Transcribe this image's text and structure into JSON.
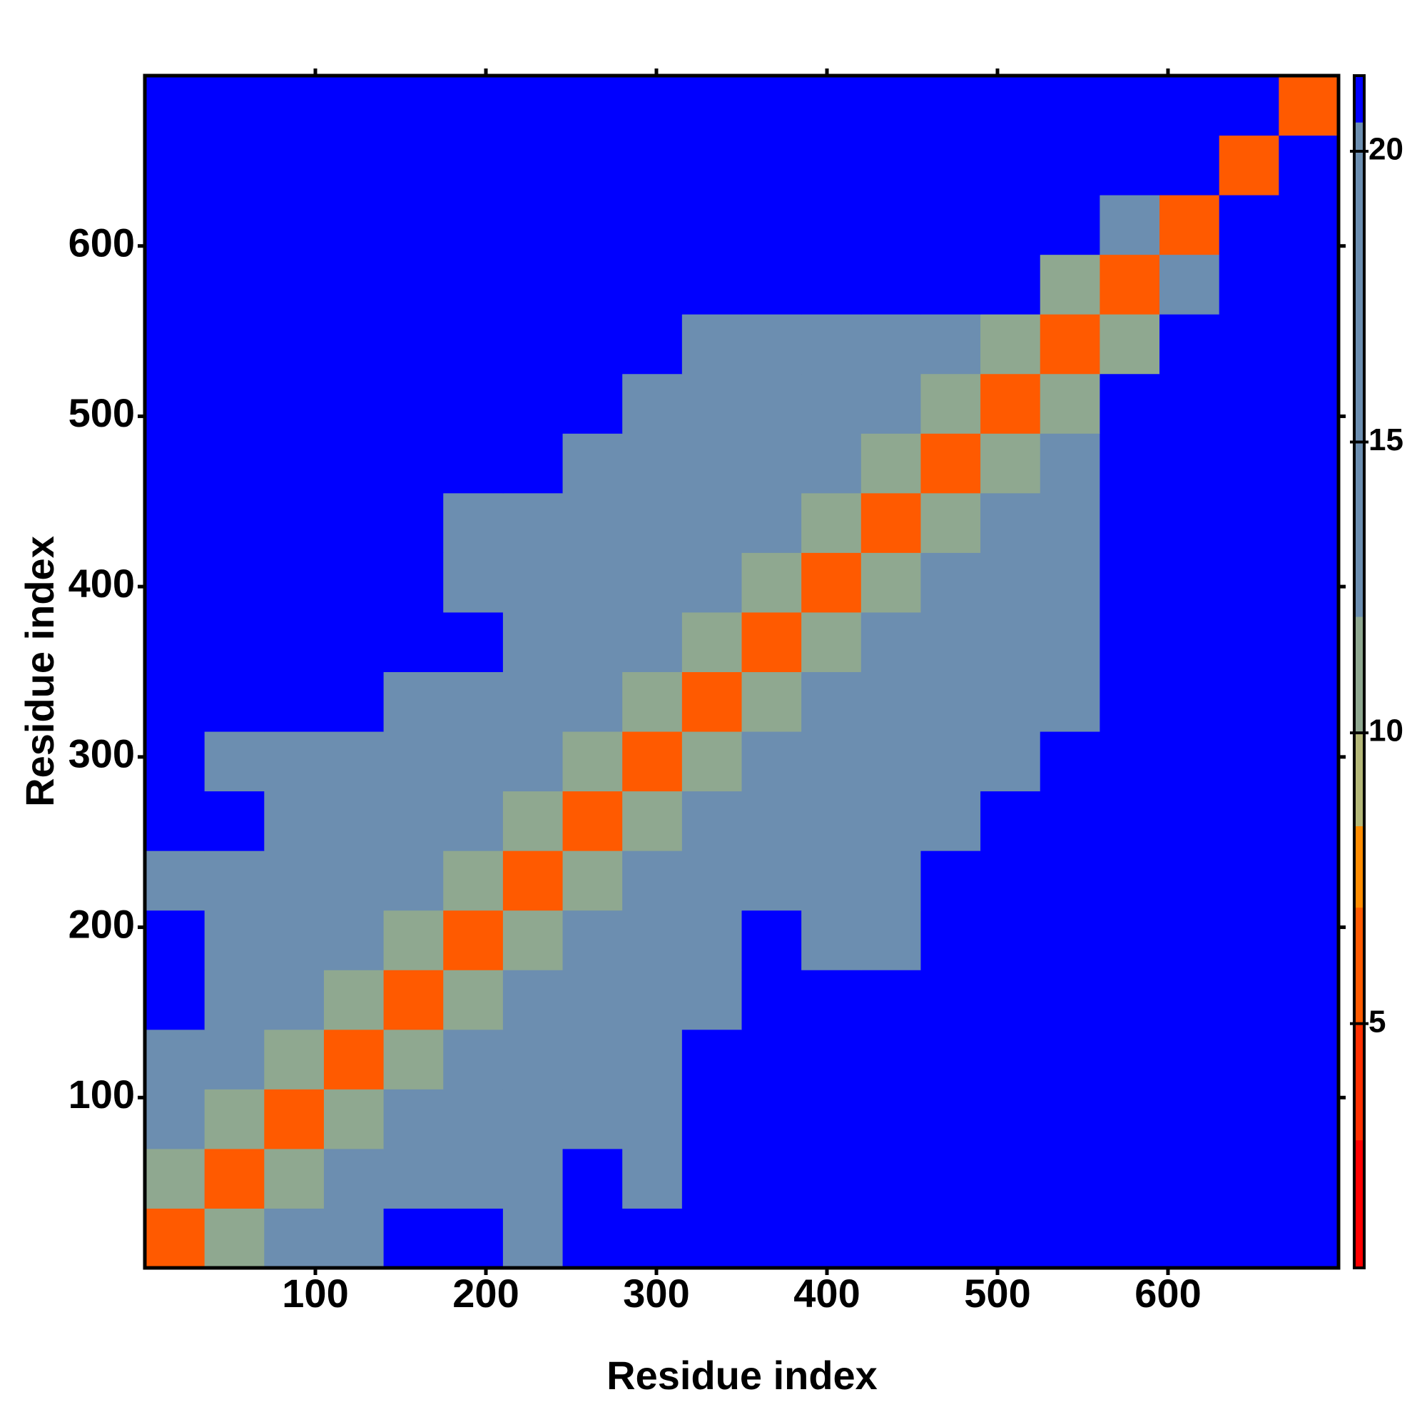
{
  "chart_data": {
    "type": "heatmap",
    "xlabel": "Residue index",
    "ylabel": "Residue index",
    "xlim": [
      0,
      700
    ],
    "ylim": [
      0,
      700
    ],
    "xticks": [
      100,
      200,
      300,
      400,
      500,
      600
    ],
    "yticks": [
      100,
      200,
      300,
      400,
      500,
      600
    ],
    "matrix": [
      [
        6,
        11,
        17,
        19,
        21,
        21,
        19,
        21,
        21,
        21,
        21,
        21,
        21,
        21,
        21,
        21,
        21,
        21,
        21,
        21
      ],
      [
        11,
        6,
        11,
        17,
        17,
        19,
        19,
        21,
        19,
        21,
        21,
        21,
        21,
        21,
        21,
        21,
        21,
        21,
        21,
        21
      ],
      [
        17,
        11,
        6,
        11,
        17,
        18,
        19,
        19,
        19,
        21,
        21,
        21,
        21,
        21,
        21,
        21,
        21,
        21,
        21,
        21
      ],
      [
        19,
        17,
        11,
        6,
        11,
        18,
        18,
        19,
        19,
        21,
        21,
        21,
        21,
        21,
        21,
        21,
        21,
        21,
        21,
        21
      ],
      [
        21,
        17,
        17,
        11,
        6,
        11,
        17,
        18,
        19,
        19,
        21,
        21,
        21,
        21,
        21,
        21,
        21,
        21,
        21,
        21
      ],
      [
        21,
        19,
        18,
        18,
        11,
        6,
        11,
        17,
        18,
        19,
        21,
        19,
        19,
        21,
        21,
        21,
        21,
        21,
        21,
        21
      ],
      [
        19,
        19,
        19,
        18,
        17,
        11,
        6,
        11,
        18,
        18,
        19,
        19,
        19,
        21,
        21,
        21,
        21,
        21,
        21,
        21
      ],
      [
        21,
        21,
        19,
        19,
        18,
        17,
        11,
        6,
        11,
        17,
        19,
        19,
        19,
        19,
        21,
        21,
        21,
        21,
        21,
        21
      ],
      [
        21,
        19,
        19,
        19,
        19,
        18,
        18,
        11,
        6,
        11,
        17,
        19,
        19,
        19,
        19,
        21,
        21,
        21,
        21,
        21
      ],
      [
        21,
        21,
        21,
        21,
        19,
        19,
        18,
        17,
        11,
        6,
        11,
        18,
        19,
        19,
        19,
        19,
        21,
        21,
        21,
        21
      ],
      [
        21,
        21,
        21,
        21,
        21,
        21,
        19,
        19,
        17,
        11,
        6,
        11,
        17,
        18,
        18,
        19,
        21,
        21,
        21,
        21
      ],
      [
        21,
        21,
        21,
        21,
        21,
        19,
        19,
        19,
        19,
        18,
        11,
        6,
        11,
        17,
        17,
        17,
        21,
        21,
        21,
        21
      ],
      [
        21,
        21,
        21,
        21,
        21,
        19,
        19,
        19,
        19,
        19,
        17,
        11,
        6,
        11,
        17,
        17,
        21,
        21,
        21,
        21
      ],
      [
        21,
        21,
        21,
        21,
        21,
        21,
        21,
        19,
        19,
        19,
        18,
        17,
        11,
        6,
        11,
        17,
        21,
        21,
        21,
        21
      ],
      [
        21,
        21,
        21,
        21,
        21,
        21,
        21,
        21,
        19,
        19,
        18,
        17,
        17,
        11,
        6,
        11,
        21,
        21,
        21,
        21
      ],
      [
        21,
        21,
        21,
        21,
        21,
        21,
        21,
        21,
        21,
        19,
        19,
        17,
        17,
        17,
        11,
        6,
        11,
        21,
        21,
        21
      ],
      [
        21,
        21,
        21,
        21,
        21,
        21,
        21,
        21,
        21,
        21,
        21,
        21,
        21,
        21,
        21,
        11,
        6,
        17,
        21,
        21
      ],
      [
        21,
        21,
        21,
        21,
        21,
        21,
        21,
        21,
        21,
        21,
        21,
        21,
        21,
        21,
        21,
        21,
        17,
        6,
        21,
        21
      ],
      [
        21,
        21,
        21,
        21,
        21,
        21,
        21,
        21,
        21,
        21,
        21,
        21,
        21,
        21,
        21,
        21,
        21,
        21,
        6,
        21
      ],
      [
        21,
        21,
        21,
        21,
        21,
        21,
        21,
        21,
        21,
        21,
        21,
        21,
        21,
        21,
        21,
        21,
        21,
        21,
        21,
        6
      ]
    ],
    "colorbar": {
      "lim": [
        0.8,
        21.3
      ],
      "ticks": [
        5,
        10,
        15,
        20
      ],
      "scale": [
        [
          0.8,
          "#ff0000"
        ],
        [
          3,
          "#ff3000"
        ],
        [
          5,
          "#ff5a00"
        ],
        [
          7,
          "#ff8c00"
        ],
        [
          8.4,
          "#b4b878"
        ],
        [
          10,
          "#8fa890"
        ],
        [
          12,
          "#6c8eb0"
        ],
        [
          20.5,
          "#0000ff"
        ]
      ]
    }
  }
}
